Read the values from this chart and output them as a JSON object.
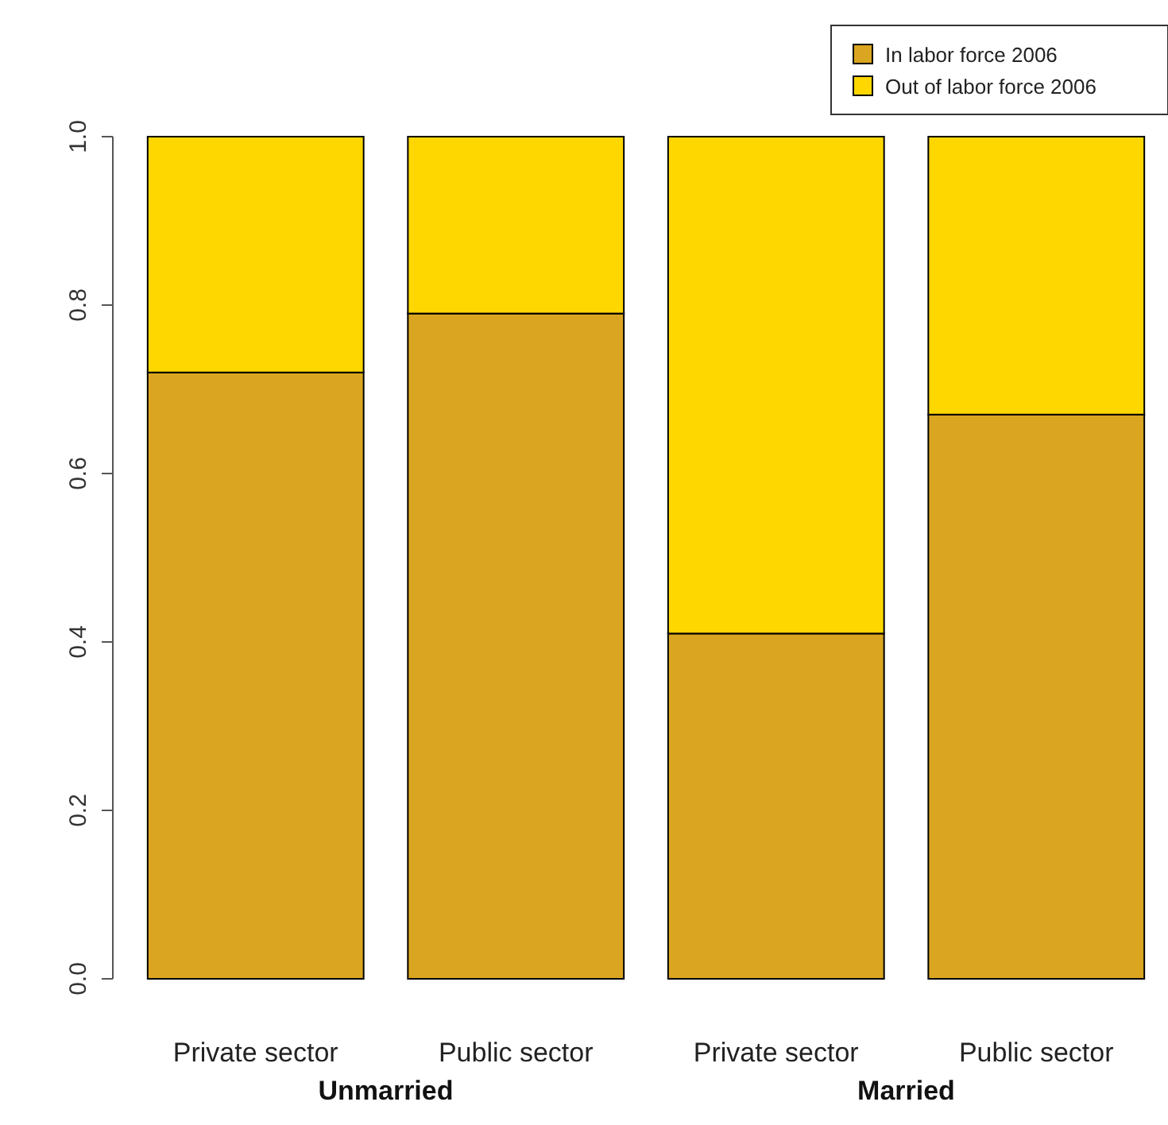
{
  "chart_data": {
    "type": "bar",
    "stacked": true,
    "categories": [
      "Private sector",
      "Public sector",
      "Private sector",
      "Public sector"
    ],
    "series": [
      {
        "name": "In labor force 2006",
        "color": "#daa520",
        "values": [
          0.72,
          0.79,
          0.41,
          0.67
        ]
      },
      {
        "name": "Out of labor force 2006",
        "color": "#ffd700",
        "values": [
          0.28,
          0.21,
          0.59,
          0.33
        ]
      }
    ],
    "ylim": [
      0,
      1
    ],
    "yticks": [
      {
        "value": 0,
        "label": "0.0"
      },
      {
        "value": 0.2,
        "label": "0.2"
      },
      {
        "value": 0.4,
        "label": "0.4"
      },
      {
        "value": 0.6,
        "label": "0.6"
      },
      {
        "value": 0.8,
        "label": "0.8"
      },
      {
        "value": 1,
        "label": "1.0"
      }
    ],
    "annotations": [
      "Unmarried",
      "Married"
    ],
    "legend": "top right",
    "grid": false
  }
}
